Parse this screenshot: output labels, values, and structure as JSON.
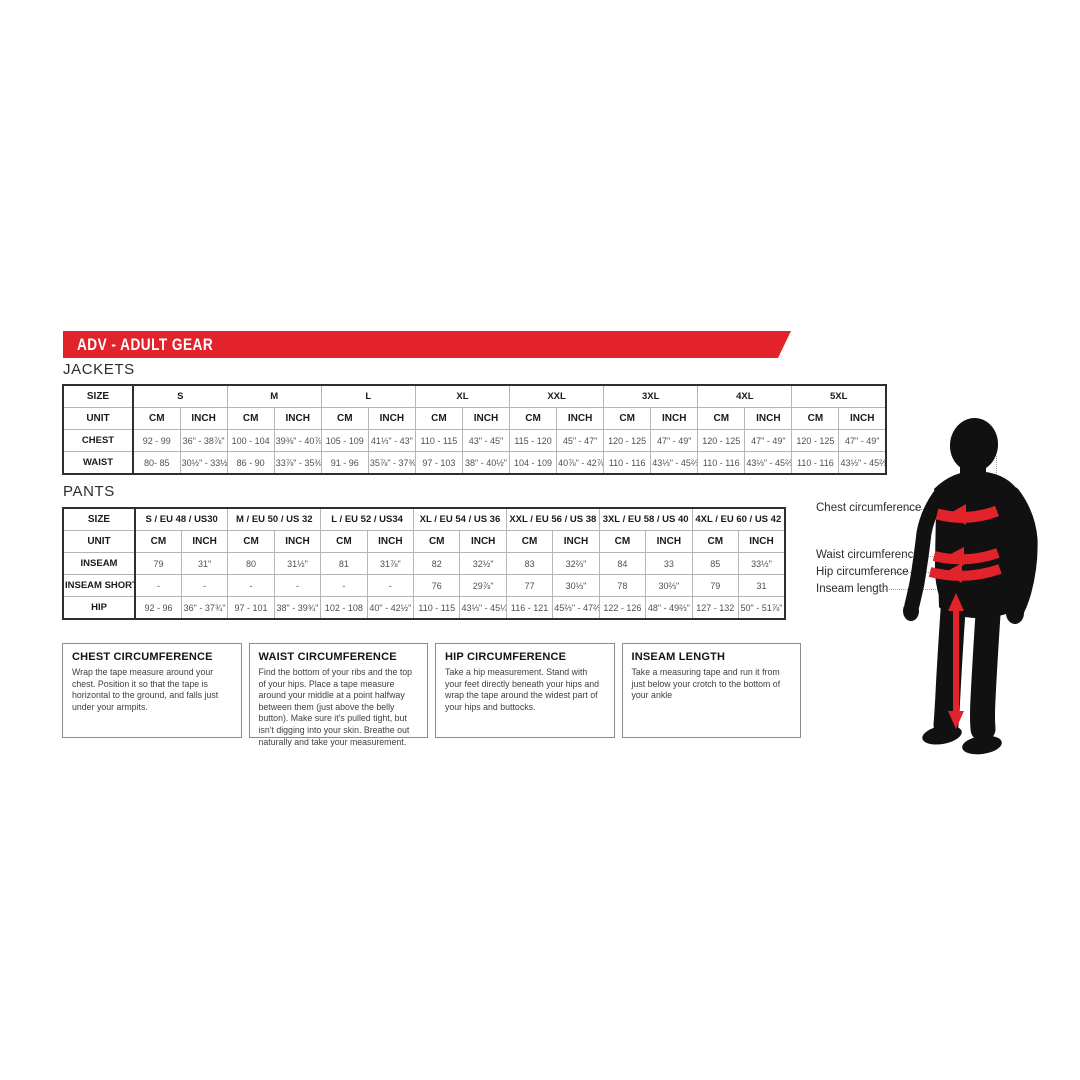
{
  "colors": {
    "accent": "#e2232b",
    "silhouette": "#111111"
  },
  "banner": {
    "title": "ADV - ADULT GEAR"
  },
  "jackets": {
    "section_label": "JACKETS",
    "size_header": "SIZE",
    "unit_header": "UNIT",
    "cm_label": "CM",
    "inch_label": "INCH",
    "sizes": [
      "S",
      "M",
      "L",
      "XL",
      "XXL",
      "3XL",
      "4XL",
      "5XL"
    ],
    "rows": [
      {
        "label": "CHEST",
        "cells": [
          {
            "cm": "92 - 99",
            "inch": "36\" - 38⅞\""
          },
          {
            "cm": "100 - 104",
            "inch": "39⅜\" - 40⅞\""
          },
          {
            "cm": "105 - 109",
            "inch": "41⅓\" - 43\""
          },
          {
            "cm": "110 - 115",
            "inch": "43\" - 45\""
          },
          {
            "cm": "115 - 120",
            "inch": "45\" - 47\""
          },
          {
            "cm": "120 - 125",
            "inch": "47\" - 49\""
          },
          {
            "cm": "120 - 125",
            "inch": "47\" - 49\""
          },
          {
            "cm": "120 - 125",
            "inch": "47\" - 49\""
          }
        ]
      },
      {
        "label": "WAIST",
        "cells": [
          {
            "cm": "80- 85",
            "inch": "30½\" - 33½\""
          },
          {
            "cm": "86 - 90",
            "inch": "33⅞\" - 35⅜\""
          },
          {
            "cm": "91 - 96",
            "inch": "35⅞\" - 37⅜\""
          },
          {
            "cm": "97 - 103",
            "inch": "38\" - 40½\""
          },
          {
            "cm": "104 - 109",
            "inch": "40⅞\" - 42⅞\""
          },
          {
            "cm": "110 - 116",
            "inch": "43⅓\" - 45⅔\""
          },
          {
            "cm": "110 - 116",
            "inch": "43⅓\" - 45⅔\""
          },
          {
            "cm": "110 - 116",
            "inch": "43⅓\" - 45⅔\""
          }
        ]
      }
    ]
  },
  "pants": {
    "section_label": "PANTS",
    "size_header": "SIZE",
    "unit_header": "UNIT",
    "cm_label": "CM",
    "inch_label": "INCH",
    "sizes": [
      "S / EU 48 / US30",
      "M / EU 50 / US 32",
      "L / EU 52 / US34",
      "XL / EU 54 / US 36",
      "XXL / EU 56 / US 38",
      "3XL / EU 58 / US 40",
      "4XL / EU 60 / US 42"
    ],
    "rows": [
      {
        "label": "INSEAM",
        "cells": [
          {
            "cm": "79",
            "inch": "31\""
          },
          {
            "cm": "80",
            "inch": "31½\""
          },
          {
            "cm": "81",
            "inch": "31⅞\""
          },
          {
            "cm": "82",
            "inch": "32½\""
          },
          {
            "cm": "83",
            "inch": "32⅔\""
          },
          {
            "cm": "84",
            "inch": "33"
          },
          {
            "cm": "85",
            "inch": "33½\""
          }
        ]
      },
      {
        "label": "INSEAM SHORT",
        "cells": [
          {
            "cm": "-",
            "inch": "-"
          },
          {
            "cm": "-",
            "inch": "-"
          },
          {
            "cm": "-",
            "inch": "-"
          },
          {
            "cm": "76",
            "inch": "29⅞\""
          },
          {
            "cm": "77",
            "inch": "30⅓\""
          },
          {
            "cm": "78",
            "inch": "30⅔\""
          },
          {
            "cm": "79",
            "inch": "31"
          }
        ]
      },
      {
        "label": "HIP",
        "cells": [
          {
            "cm": "92 - 96",
            "inch": "36\" - 37¾\""
          },
          {
            "cm": "97 - 101",
            "inch": "38\" - 39¾\""
          },
          {
            "cm": "102 - 108",
            "inch": "40\" - 42½\""
          },
          {
            "cm": "110 - 115",
            "inch": "43⅓\" - 45¼\""
          },
          {
            "cm": "116 - 121",
            "inch": "45⅔\" - 47⅔\""
          },
          {
            "cm": "122 - 126",
            "inch": "48\" - 49⅔\""
          },
          {
            "cm": "127 - 132",
            "inch": "50\" - 51⅞\""
          }
        ]
      }
    ]
  },
  "guides": [
    {
      "title": "CHEST CIRCUMFERENCE",
      "body": "Wrap the tape measure around your chest. Position it so that the tape is horizontal to the ground, and falls just under your armpits."
    },
    {
      "title": "WAIST CIRCUMFERENCE",
      "body": "Find the bottom of your ribs and the top of your hips. Place a tape measure around your middle at a point halfway between them (just above the belly button). Make sure it's pulled tight, but isn't digging into your skin. Breathe out naturally and take your measurement."
    },
    {
      "title": "HIP CIRCUMFERENCE",
      "body": "Take a hip measurement. Stand with your feet directly beneath your hips and wrap the tape around the widest part of your hips and buttocks."
    },
    {
      "title": "INSEAM LENGTH",
      "body": "Take a measuring tape and run it from just below your crotch to the bottom of your ankle"
    }
  ],
  "figure": {
    "labels": [
      "Chest circumference",
      "Waist circumference",
      "Hip circumference",
      "Inseam length"
    ]
  }
}
